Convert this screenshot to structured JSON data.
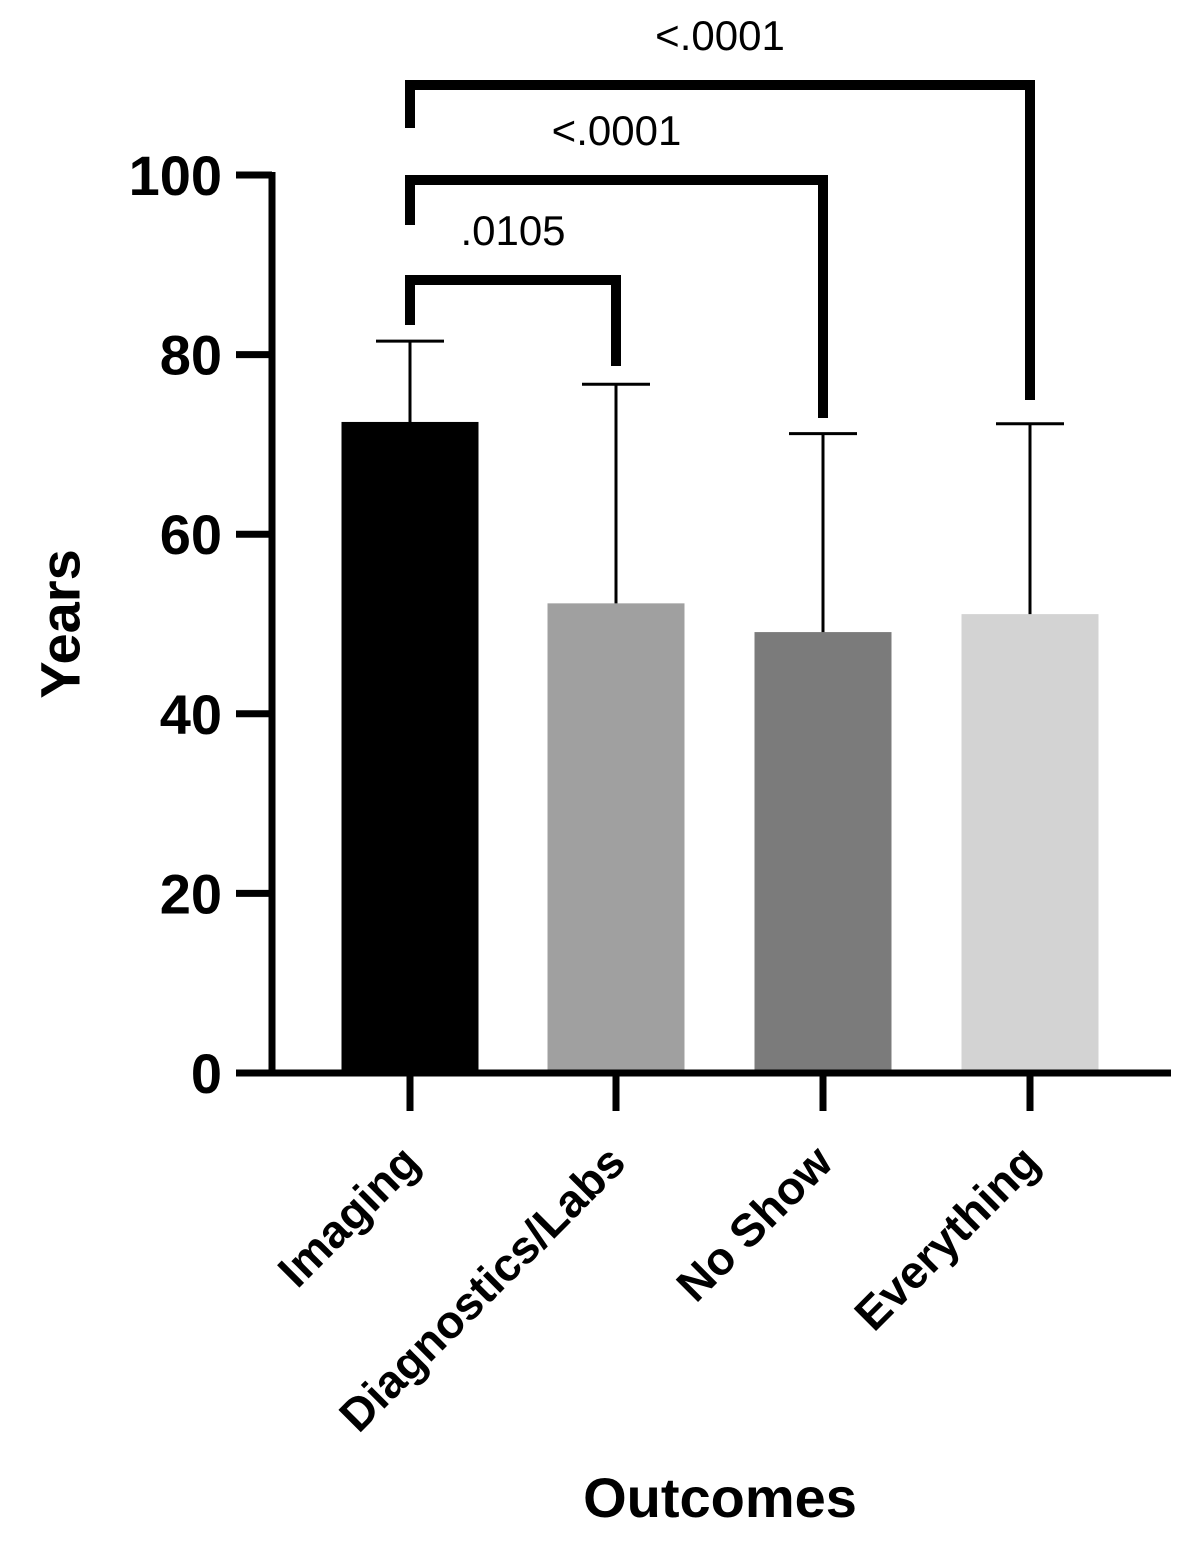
{
  "chart_data": {
    "type": "bar",
    "title": "",
    "xlabel": "Outcomes",
    "ylabel": "Years",
    "ylim": [
      0,
      100
    ],
    "yticks": [
      "0",
      "20",
      "40",
      "60",
      "80",
      "100"
    ],
    "categories": [
      "Imaging",
      "Diagnostics/Labs",
      "No Show",
      "Everything"
    ],
    "values": [
      72.5,
      52.3,
      49.1,
      51.1
    ],
    "error_upper": [
      81.5,
      76.7,
      71.2,
      72.3
    ],
    "bar_colors": [
      "#000000",
      "#a0a0a0",
      "#7b7b7b",
      "#d3d3d3"
    ],
    "grid": false,
    "comparisons": [
      {
        "from": "Imaging",
        "to": "Diagnostics/Labs",
        "p_label": ".0105"
      },
      {
        "from": "Imaging",
        "to": "No Show",
        "p_label": "<.0001"
      },
      {
        "from": "Imaging",
        "to": "Everything",
        "p_label": "<.0001"
      }
    ]
  }
}
